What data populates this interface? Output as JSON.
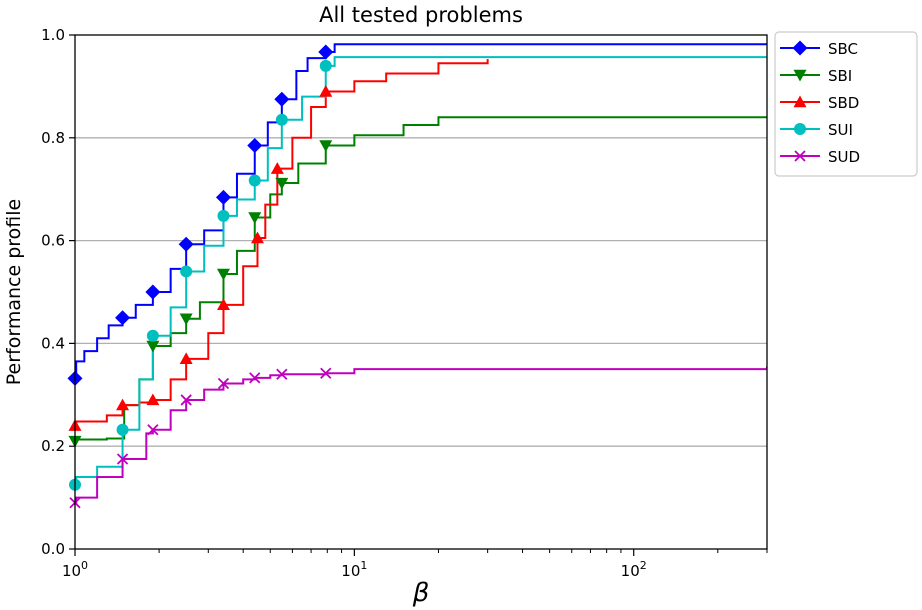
{
  "chart_data": {
    "type": "line",
    "title": "All tested problems",
    "xlabel": "β",
    "ylabel": "Performance profile",
    "xscale": "log",
    "xlim": [
      1,
      300
    ],
    "ylim": [
      0,
      1
    ],
    "grid": "y-major",
    "legend_position": "outside-top-right",
    "x_ticks": [
      {
        "value": 1,
        "base": "10",
        "exp": "0"
      },
      {
        "value": 10,
        "base": "10",
        "exp": "1"
      },
      {
        "value": 100,
        "base": "10",
        "exp": "2"
      }
    ],
    "y_ticks": [
      {
        "value": 0,
        "label": "0.0"
      },
      {
        "value": 0.2,
        "label": "0.2"
      },
      {
        "value": 0.4,
        "label": "0.4"
      },
      {
        "value": 0.6,
        "label": "0.6"
      },
      {
        "value": 0.8,
        "label": "0.8"
      },
      {
        "value": 1.0,
        "label": "1.0"
      }
    ],
    "series": [
      {
        "name": "SBC",
        "color": "#0000ff",
        "marker": "diamond",
        "points": [
          [
            1.0,
            0.332
          ],
          [
            1.01,
            0.365
          ],
          [
            1.08,
            0.385
          ],
          [
            1.2,
            0.41
          ],
          [
            1.32,
            0.435
          ],
          [
            1.48,
            0.45
          ],
          [
            1.65,
            0.475
          ],
          [
            1.9,
            0.5
          ],
          [
            2.2,
            0.545
          ],
          [
            2.5,
            0.593
          ],
          [
            2.9,
            0.62
          ],
          [
            3.4,
            0.684
          ],
          [
            3.8,
            0.73
          ],
          [
            4.4,
            0.785
          ],
          [
            4.9,
            0.83
          ],
          [
            5.5,
            0.875
          ],
          [
            6.2,
            0.93
          ],
          [
            6.8,
            0.955
          ],
          [
            7.9,
            0.967
          ],
          [
            8.5,
            0.982
          ],
          [
            300,
            0.982
          ]
        ],
        "markers": [
          [
            1.0,
            0.332
          ],
          [
            1.48,
            0.45
          ],
          [
            1.9,
            0.5
          ],
          [
            2.5,
            0.593
          ],
          [
            3.4,
            0.684
          ],
          [
            4.4,
            0.785
          ],
          [
            5.5,
            0.875
          ],
          [
            7.9,
            0.967
          ]
        ]
      },
      {
        "name": "SBI",
        "color": "#008000",
        "marker": "triangle-down",
        "points": [
          [
            1.0,
            0.21
          ],
          [
            1.01,
            0.213
          ],
          [
            1.3,
            0.215
          ],
          [
            1.5,
            0.28
          ],
          [
            1.7,
            0.33
          ],
          [
            1.9,
            0.395
          ],
          [
            2.2,
            0.42
          ],
          [
            2.5,
            0.448
          ],
          [
            2.8,
            0.48
          ],
          [
            3.4,
            0.535
          ],
          [
            3.8,
            0.58
          ],
          [
            4.4,
            0.645
          ],
          [
            5.0,
            0.69
          ],
          [
            5.5,
            0.712
          ],
          [
            6.3,
            0.75
          ],
          [
            7.9,
            0.785
          ],
          [
            10,
            0.805
          ],
          [
            15,
            0.825
          ],
          [
            20,
            0.84
          ],
          [
            300,
            0.84
          ]
        ],
        "markers": [
          [
            1.0,
            0.21
          ],
          [
            1.9,
            0.395
          ],
          [
            2.5,
            0.448
          ],
          [
            3.4,
            0.535
          ],
          [
            4.4,
            0.645
          ],
          [
            5.5,
            0.712
          ],
          [
            7.9,
            0.785
          ]
        ]
      },
      {
        "name": "SBD",
        "color": "#ff0000",
        "marker": "triangle-up",
        "points": [
          [
            1.0,
            0.24
          ],
          [
            1.01,
            0.248
          ],
          [
            1.3,
            0.26
          ],
          [
            1.48,
            0.28
          ],
          [
            1.7,
            0.285
          ],
          [
            1.9,
            0.29
          ],
          [
            2.2,
            0.33
          ],
          [
            2.5,
            0.37
          ],
          [
            3.0,
            0.42
          ],
          [
            3.4,
            0.475
          ],
          [
            4.0,
            0.55
          ],
          [
            4.5,
            0.605
          ],
          [
            4.8,
            0.67
          ],
          [
            5.3,
            0.74
          ],
          [
            6.0,
            0.8
          ],
          [
            7.0,
            0.86
          ],
          [
            7.9,
            0.89
          ],
          [
            10,
            0.91
          ],
          [
            13,
            0.925
          ],
          [
            20,
            0.945
          ],
          [
            30,
            0.953
          ]
        ],
        "markers": [
          [
            1.0,
            0.24
          ],
          [
            1.48,
            0.28
          ],
          [
            1.9,
            0.29
          ],
          [
            2.5,
            0.37
          ],
          [
            3.4,
            0.475
          ],
          [
            4.5,
            0.605
          ],
          [
            5.3,
            0.74
          ],
          [
            7.9,
            0.89
          ]
        ]
      },
      {
        "name": "SUI",
        "color": "#00bfbf",
        "marker": "circle",
        "points": [
          [
            1.0,
            0.125
          ],
          [
            1.01,
            0.14
          ],
          [
            1.2,
            0.16
          ],
          [
            1.48,
            0.232
          ],
          [
            1.7,
            0.33
          ],
          [
            1.9,
            0.415
          ],
          [
            2.2,
            0.47
          ],
          [
            2.5,
            0.54
          ],
          [
            2.9,
            0.59
          ],
          [
            3.4,
            0.648
          ],
          [
            3.8,
            0.68
          ],
          [
            4.4,
            0.717
          ],
          [
            4.9,
            0.78
          ],
          [
            5.5,
            0.835
          ],
          [
            6.5,
            0.88
          ],
          [
            7.9,
            0.94
          ],
          [
            8.5,
            0.957
          ],
          [
            300,
            0.957
          ]
        ],
        "markers": [
          [
            1.0,
            0.125
          ],
          [
            1.48,
            0.232
          ],
          [
            1.9,
            0.415
          ],
          [
            2.5,
            0.54
          ],
          [
            3.4,
            0.648
          ],
          [
            4.4,
            0.717
          ],
          [
            5.5,
            0.835
          ],
          [
            7.9,
            0.94
          ]
        ]
      },
      {
        "name": "SUD",
        "color": "#bf00bf",
        "marker": "x",
        "points": [
          [
            1.0,
            0.09
          ],
          [
            1.01,
            0.1
          ],
          [
            1.2,
            0.14
          ],
          [
            1.48,
            0.175
          ],
          [
            1.8,
            0.225
          ],
          [
            1.9,
            0.232
          ],
          [
            2.2,
            0.27
          ],
          [
            2.5,
            0.29
          ],
          [
            2.9,
            0.31
          ],
          [
            3.4,
            0.322
          ],
          [
            4.0,
            0.33
          ],
          [
            4.4,
            0.333
          ],
          [
            5.0,
            0.338
          ],
          [
            5.5,
            0.34
          ],
          [
            7.9,
            0.342
          ],
          [
            10,
            0.35
          ],
          [
            300,
            0.355
          ]
        ],
        "markers": [
          [
            1.0,
            0.09
          ],
          [
            1.48,
            0.175
          ],
          [
            1.9,
            0.232
          ],
          [
            2.5,
            0.29
          ],
          [
            3.4,
            0.322
          ],
          [
            4.4,
            0.333
          ],
          [
            5.5,
            0.34
          ],
          [
            7.9,
            0.342
          ]
        ]
      }
    ]
  }
}
